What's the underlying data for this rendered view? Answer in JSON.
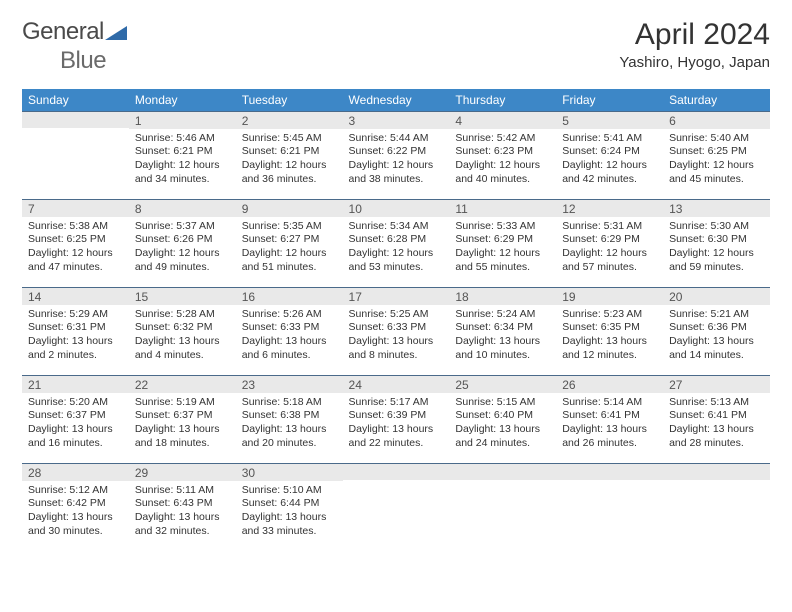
{
  "logo": {
    "part1": "General",
    "part2": "Blue"
  },
  "title": "April 2024",
  "location": "Yashiro, Hyogo, Japan",
  "headers": [
    "Sunday",
    "Monday",
    "Tuesday",
    "Wednesday",
    "Thursday",
    "Friday",
    "Saturday"
  ],
  "header_bg": "#3d87c7",
  "grid_border": "#4a6a8a",
  "cell_text_fontsize": 10.5,
  "weeks": [
    [
      {
        "n": "",
        "lines": [
          "",
          "",
          "",
          ""
        ]
      },
      {
        "n": "1",
        "lines": [
          "Sunrise: 5:46 AM",
          "Sunset: 6:21 PM",
          "Daylight: 12 hours",
          "and 34 minutes."
        ]
      },
      {
        "n": "2",
        "lines": [
          "Sunrise: 5:45 AM",
          "Sunset: 6:21 PM",
          "Daylight: 12 hours",
          "and 36 minutes."
        ]
      },
      {
        "n": "3",
        "lines": [
          "Sunrise: 5:44 AM",
          "Sunset: 6:22 PM",
          "Daylight: 12 hours",
          "and 38 minutes."
        ]
      },
      {
        "n": "4",
        "lines": [
          "Sunrise: 5:42 AM",
          "Sunset: 6:23 PM",
          "Daylight: 12 hours",
          "and 40 minutes."
        ]
      },
      {
        "n": "5",
        "lines": [
          "Sunrise: 5:41 AM",
          "Sunset: 6:24 PM",
          "Daylight: 12 hours",
          "and 42 minutes."
        ]
      },
      {
        "n": "6",
        "lines": [
          "Sunrise: 5:40 AM",
          "Sunset: 6:25 PM",
          "Daylight: 12 hours",
          "and 45 minutes."
        ]
      }
    ],
    [
      {
        "n": "7",
        "lines": [
          "Sunrise: 5:38 AM",
          "Sunset: 6:25 PM",
          "Daylight: 12 hours",
          "and 47 minutes."
        ]
      },
      {
        "n": "8",
        "lines": [
          "Sunrise: 5:37 AM",
          "Sunset: 6:26 PM",
          "Daylight: 12 hours",
          "and 49 minutes."
        ]
      },
      {
        "n": "9",
        "lines": [
          "Sunrise: 5:35 AM",
          "Sunset: 6:27 PM",
          "Daylight: 12 hours",
          "and 51 minutes."
        ]
      },
      {
        "n": "10",
        "lines": [
          "Sunrise: 5:34 AM",
          "Sunset: 6:28 PM",
          "Daylight: 12 hours",
          "and 53 minutes."
        ]
      },
      {
        "n": "11",
        "lines": [
          "Sunrise: 5:33 AM",
          "Sunset: 6:29 PM",
          "Daylight: 12 hours",
          "and 55 minutes."
        ]
      },
      {
        "n": "12",
        "lines": [
          "Sunrise: 5:31 AM",
          "Sunset: 6:29 PM",
          "Daylight: 12 hours",
          "and 57 minutes."
        ]
      },
      {
        "n": "13",
        "lines": [
          "Sunrise: 5:30 AM",
          "Sunset: 6:30 PM",
          "Daylight: 12 hours",
          "and 59 minutes."
        ]
      }
    ],
    [
      {
        "n": "14",
        "lines": [
          "Sunrise: 5:29 AM",
          "Sunset: 6:31 PM",
          "Daylight: 13 hours",
          "and 2 minutes."
        ]
      },
      {
        "n": "15",
        "lines": [
          "Sunrise: 5:28 AM",
          "Sunset: 6:32 PM",
          "Daylight: 13 hours",
          "and 4 minutes."
        ]
      },
      {
        "n": "16",
        "lines": [
          "Sunrise: 5:26 AM",
          "Sunset: 6:33 PM",
          "Daylight: 13 hours",
          "and 6 minutes."
        ]
      },
      {
        "n": "17",
        "lines": [
          "Sunrise: 5:25 AM",
          "Sunset: 6:33 PM",
          "Daylight: 13 hours",
          "and 8 minutes."
        ]
      },
      {
        "n": "18",
        "lines": [
          "Sunrise: 5:24 AM",
          "Sunset: 6:34 PM",
          "Daylight: 13 hours",
          "and 10 minutes."
        ]
      },
      {
        "n": "19",
        "lines": [
          "Sunrise: 5:23 AM",
          "Sunset: 6:35 PM",
          "Daylight: 13 hours",
          "and 12 minutes."
        ]
      },
      {
        "n": "20",
        "lines": [
          "Sunrise: 5:21 AM",
          "Sunset: 6:36 PM",
          "Daylight: 13 hours",
          "and 14 minutes."
        ]
      }
    ],
    [
      {
        "n": "21",
        "lines": [
          "Sunrise: 5:20 AM",
          "Sunset: 6:37 PM",
          "Daylight: 13 hours",
          "and 16 minutes."
        ]
      },
      {
        "n": "22",
        "lines": [
          "Sunrise: 5:19 AM",
          "Sunset: 6:37 PM",
          "Daylight: 13 hours",
          "and 18 minutes."
        ]
      },
      {
        "n": "23",
        "lines": [
          "Sunrise: 5:18 AM",
          "Sunset: 6:38 PM",
          "Daylight: 13 hours",
          "and 20 minutes."
        ]
      },
      {
        "n": "24",
        "lines": [
          "Sunrise: 5:17 AM",
          "Sunset: 6:39 PM",
          "Daylight: 13 hours",
          "and 22 minutes."
        ]
      },
      {
        "n": "25",
        "lines": [
          "Sunrise: 5:15 AM",
          "Sunset: 6:40 PM",
          "Daylight: 13 hours",
          "and 24 minutes."
        ]
      },
      {
        "n": "26",
        "lines": [
          "Sunrise: 5:14 AM",
          "Sunset: 6:41 PM",
          "Daylight: 13 hours",
          "and 26 minutes."
        ]
      },
      {
        "n": "27",
        "lines": [
          "Sunrise: 5:13 AM",
          "Sunset: 6:41 PM",
          "Daylight: 13 hours",
          "and 28 minutes."
        ]
      }
    ],
    [
      {
        "n": "28",
        "lines": [
          "Sunrise: 5:12 AM",
          "Sunset: 6:42 PM",
          "Daylight: 13 hours",
          "and 30 minutes."
        ]
      },
      {
        "n": "29",
        "lines": [
          "Sunrise: 5:11 AM",
          "Sunset: 6:43 PM",
          "Daylight: 13 hours",
          "and 32 minutes."
        ]
      },
      {
        "n": "30",
        "lines": [
          "Sunrise: 5:10 AM",
          "Sunset: 6:44 PM",
          "Daylight: 13 hours",
          "and 33 minutes."
        ]
      },
      {
        "n": "",
        "lines": [
          "",
          "",
          "",
          ""
        ]
      },
      {
        "n": "",
        "lines": [
          "",
          "",
          "",
          ""
        ]
      },
      {
        "n": "",
        "lines": [
          "",
          "",
          "",
          ""
        ]
      },
      {
        "n": "",
        "lines": [
          "",
          "",
          "",
          ""
        ]
      }
    ]
  ]
}
